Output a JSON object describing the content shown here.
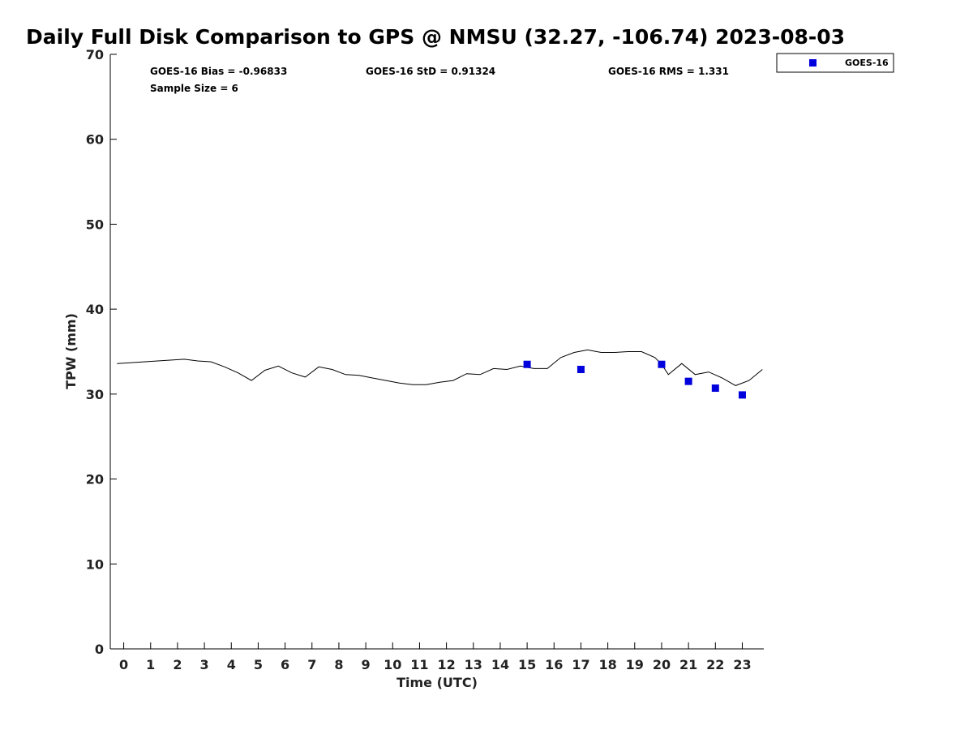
{
  "chart_data": {
    "type": "scatter",
    "title": "Daily Full Disk Comparison to GPS @ NMSU (32.27, -106.74) 2023-08-03",
    "xlabel": "Time (UTC)",
    "ylabel": "TPW (mm)",
    "xlim": [
      -0.5,
      23.8
    ],
    "ylim": [
      0,
      70
    ],
    "x_ticks": [
      "0",
      "1",
      "2",
      "3",
      "4",
      "5",
      "6",
      "7",
      "8",
      "9",
      "10",
      "11",
      "12",
      "13",
      "14",
      "15",
      "16",
      "17",
      "18",
      "19",
      "20",
      "21",
      "22",
      "23"
    ],
    "y_ticks": [
      "0",
      "10",
      "20",
      "30",
      "40",
      "50",
      "60",
      "70"
    ],
    "stats": {
      "bias": "GOES-16 Bias = -0.96833",
      "std": "GOES-16 StD = 0.91324",
      "rms": "GOES-16 RMS = 1.331",
      "sample": "Sample Size = 6"
    },
    "legend": {
      "position": "top-right",
      "entries": [
        "GOES-16"
      ]
    },
    "gps_line": {
      "x": [
        -0.25,
        2.25,
        2.75,
        3.25,
        3.75,
        4.25,
        4.75,
        5.25,
        5.75,
        6.25,
        6.75,
        7.25,
        7.75,
        8.25,
        8.75,
        9.25,
        9.75,
        10.25,
        10.75,
        11.25,
        11.75,
        12.25,
        12.75,
        13.25,
        13.75,
        14.25,
        14.75,
        15.25,
        15.75,
        16.25,
        16.75,
        17.25,
        17.75,
        18.25,
        18.75,
        19.25,
        19.75,
        20.0,
        20.25,
        20.75,
        21.25,
        21.75,
        22.25,
        22.75,
        23.25,
        23.75
      ],
      "y": [
        33.6,
        34.1,
        33.9,
        33.8,
        33.2,
        32.5,
        31.6,
        32.8,
        33.3,
        32.5,
        32.0,
        33.2,
        32.9,
        32.3,
        32.2,
        31.9,
        31.6,
        31.3,
        31.1,
        31.1,
        31.4,
        31.6,
        32.4,
        32.3,
        33.0,
        32.9,
        33.3,
        33.0,
        33.0,
        34.3,
        34.9,
        35.2,
        34.9,
        34.9,
        35.0,
        35.0,
        34.3,
        33.5,
        32.3,
        33.6,
        32.3,
        32.6,
        31.9,
        31.0,
        31.6,
        32.9
      ]
    },
    "series": [
      {
        "name": "GOES-16",
        "color": "#0000dd",
        "marker": "square",
        "x": [
          15,
          17,
          20,
          21,
          22,
          23
        ],
        "y": [
          33.5,
          32.9,
          33.5,
          31.5,
          30.7,
          29.9
        ]
      }
    ]
  }
}
